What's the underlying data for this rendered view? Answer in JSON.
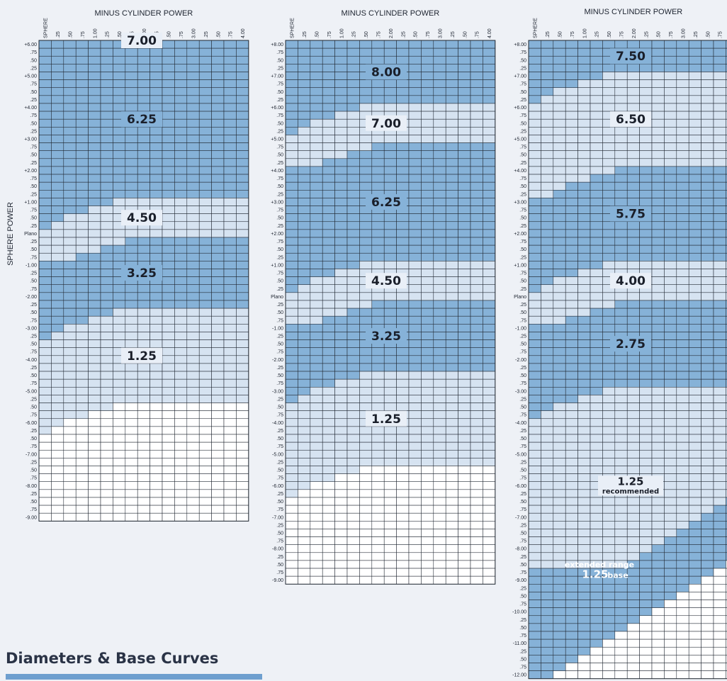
{
  "colors": {
    "page_bg": "#eef1f6",
    "dark_zone": "#86b2d8",
    "light_zone": "#d6e3f1",
    "white_zone": "#ffffff",
    "grid": "#1f2630",
    "label_box": "#e9eff7"
  },
  "caption": "Diameters & Base Curves",
  "chart_data": [
    {
      "type": "heatmap",
      "title": "MINUS CYLINDER POWER",
      "ylabel": "SPHERE POWER",
      "columns": [
        "SPHERE",
        ".25",
        ".50",
        ".75",
        "1.00",
        ".25",
        ".50",
        ".75",
        "2.00",
        ".25",
        ".50",
        ".75",
        "3.00",
        ".25",
        ".50",
        ".75",
        "4.00"
      ],
      "rows": [
        "+6.00",
        ".75",
        ".50",
        ".25",
        "+5.00",
        ".75",
        ".50",
        ".25",
        "+4.00",
        ".75",
        ".50",
        ".25",
        "+3.00",
        ".75",
        ".50",
        ".25",
        "+2.00",
        ".75",
        ".50",
        ".25",
        "+1.00",
        ".75",
        ".50",
        ".25",
        "Plano",
        ".25",
        ".50",
        ".75",
        "-1.00",
        ".25",
        ".50",
        ".75",
        "-2.00",
        ".25",
        ".50",
        ".75",
        "-3.00",
        ".25",
        ".50",
        ".75",
        "-4.00",
        ".25",
        ".50",
        ".75",
        "-5.00",
        ".25",
        ".50",
        ".75",
        "-6.00",
        ".25",
        ".50",
        ".75",
        "-7.00",
        ".25",
        ".50",
        ".75",
        "-8.00",
        ".25",
        ".50",
        ".75",
        "-9.00"
      ],
      "zones": [
        {
          "label": "7.00",
          "style": "light",
          "bounds": [
            -1,
            -1,
            -1,
            -1,
            -1,
            -1,
            -1,
            -1,
            -1,
            -1,
            -1,
            -1,
            -1,
            -1,
            -1,
            -1,
            -1
          ]
        },
        {
          "label": "6.25",
          "style": "dark",
          "bounds": [
            23,
            22,
            21,
            21,
            20,
            20,
            19,
            19,
            19,
            19,
            19,
            19,
            19,
            19,
            19,
            19,
            19
          ]
        },
        {
          "label": "4.50",
          "style": "light",
          "bounds": [
            27,
            27,
            27,
            26,
            26,
            25,
            25,
            24,
            24,
            24,
            24,
            24,
            24,
            24,
            24,
            24,
            24
          ]
        },
        {
          "label": "3.25",
          "style": "dark",
          "bounds": [
            37,
            36,
            35,
            35,
            34,
            34,
            33,
            33,
            33,
            33,
            33,
            33,
            33,
            33,
            33,
            33,
            33
          ]
        },
        {
          "label": "1.25",
          "style": "light",
          "bounds": [
            49,
            48,
            47,
            47,
            46,
            46,
            45,
            45,
            45,
            45,
            45,
            45,
            45,
            45,
            45,
            45,
            45
          ]
        }
      ],
      "extended": [
        61,
        61,
        60,
        59,
        58,
        57,
        56,
        56,
        56,
        56,
        56,
        56,
        56,
        56,
        56,
        56,
        56
      ],
      "zone_labels": [
        "7.00",
        "6.25",
        "4.50",
        "3.25",
        "1.25"
      ]
    },
    {
      "type": "heatmap",
      "title": "MINUS CYLINDER POWER",
      "columns": [
        "SPHERE",
        ".25",
        ".50",
        ".75",
        "1.00",
        ".25",
        ".50",
        ".75",
        "2.00",
        ".25",
        ".50",
        ".75",
        "3.00",
        ".25",
        ".50",
        ".75",
        "4.00"
      ],
      "rows": [
        "+8.00",
        ".75",
        ".50",
        ".25",
        "+7.00",
        ".75",
        ".50",
        ".25",
        "+6.00",
        ".75",
        ".50",
        ".25",
        "+5.00",
        ".75",
        ".50",
        ".25",
        "+4.00",
        ".75",
        ".50",
        ".25",
        "+3.00",
        ".75",
        ".50",
        ".25",
        "+2.00",
        ".75",
        ".50",
        ".25",
        "+1.00",
        ".75",
        ".50",
        ".25",
        "Plano",
        ".25",
        ".50",
        ".75",
        "-1.00",
        ".25",
        ".50",
        ".75",
        "-2.00",
        ".25",
        ".50",
        ".75",
        "-3.00",
        ".25",
        ".50",
        ".75",
        "-4.00",
        ".25",
        ".50",
        ".75",
        "-5.00",
        ".25",
        ".50",
        ".75",
        "-6.00",
        ".25",
        ".50",
        ".75",
        "-7.00",
        ".25",
        ".50",
        ".75",
        "-8.00",
        ".25",
        ".50",
        ".75",
        "-9.00"
      ],
      "zones": [
        {
          "label": "8.00",
          "style": "dark",
          "bounds": [
            11,
            10,
            9,
            9,
            8,
            8,
            7,
            7,
            7,
            7,
            7,
            7,
            7,
            7,
            7,
            7,
            7
          ]
        },
        {
          "label": "7.00",
          "style": "light",
          "bounds": [
            15,
            15,
            15,
            14,
            14,
            13,
            13,
            12,
            12,
            12,
            12,
            12,
            12,
            12,
            12,
            12,
            12
          ]
        },
        {
          "label": "6.25",
          "style": "dark",
          "bounds": [
            31,
            30,
            29,
            29,
            28,
            28,
            27,
            27,
            27,
            27,
            27,
            27,
            27,
            27,
            27,
            27,
            27
          ]
        },
        {
          "label": "4.50",
          "style": "light",
          "bounds": [
            35,
            35,
            35,
            34,
            34,
            33,
            33,
            32,
            32,
            32,
            32,
            32,
            32,
            32,
            32,
            32,
            32
          ]
        },
        {
          "label": "3.25",
          "style": "dark",
          "bounds": [
            45,
            44,
            43,
            43,
            42,
            42,
            41,
            41,
            41,
            41,
            41,
            41,
            41,
            41,
            41,
            41,
            41
          ]
        },
        {
          "label": "1.25",
          "style": "light",
          "bounds": [
            57,
            56,
            55,
            55,
            54,
            54,
            53,
            53,
            53,
            53,
            53,
            53,
            53,
            53,
            53,
            53,
            53
          ]
        }
      ],
      "extended": [
        69,
        69,
        68,
        67,
        66,
        65,
        64,
        64,
        64,
        64,
        64,
        64,
        64,
        64,
        64,
        64,
        64
      ],
      "zone_labels": [
        "8.00",
        "7.00",
        "6.25",
        "4.50",
        "3.25",
        "1.25"
      ]
    },
    {
      "type": "heatmap",
      "title": "MINUS CYLINDER POWER",
      "columns": [
        "SPHERE",
        ".25",
        ".50",
        ".75",
        "1.00",
        ".25",
        ".50",
        ".75",
        "2.00",
        ".25",
        ".50",
        ".75",
        "3.00",
        ".25",
        ".50",
        ".75",
        "4.00"
      ],
      "rows": [
        "+8.00",
        ".75",
        ".50",
        ".25",
        "+7.00",
        ".75",
        ".50",
        ".25",
        "+6.00",
        ".75",
        ".50",
        ".25",
        "+5.00",
        ".75",
        ".50",
        ".25",
        "+4.00",
        ".75",
        ".50",
        ".25",
        "+3.00",
        ".75",
        ".50",
        ".25",
        "+2.00",
        ".75",
        ".50",
        ".25",
        "+1.00",
        ".75",
        ".50",
        ".25",
        "Plano",
        ".25",
        ".50",
        ".75",
        "-1.00",
        ".25",
        ".50",
        ".75",
        "-2.00",
        ".25",
        ".50",
        ".75",
        "-3.00",
        ".25",
        ".50",
        ".75",
        "-4.00",
        ".25",
        ".50",
        ".75",
        "-5.00",
        ".25",
        ".50",
        ".75",
        "-6.00",
        ".25",
        ".50",
        ".75",
        "-7.00",
        ".25",
        ".50",
        ".75",
        "-8.00",
        ".25",
        ".50",
        ".75",
        "-9.00",
        ".25",
        ".50",
        ".75",
        "-10.00",
        ".25",
        ".50",
        ".75",
        "-11.00",
        ".25",
        ".50",
        ".75",
        "-12.00"
      ],
      "zones": [
        {
          "label": "7.50",
          "style": "dark",
          "bounds": [
            7,
            6,
            5,
            5,
            4,
            4,
            3,
            3,
            3,
            3,
            3,
            3,
            3,
            3,
            3,
            3,
            3
          ]
        },
        {
          "label": "6.50",
          "style": "light",
          "bounds": [
            19,
            19,
            18,
            17,
            17,
            16,
            16,
            15,
            15,
            15,
            15,
            15,
            15,
            15,
            15,
            15,
            15
          ]
        },
        {
          "label": "5.75",
          "style": "dark",
          "bounds": [
            31,
            30,
            29,
            29,
            28,
            28,
            27,
            27,
            27,
            27,
            27,
            27,
            27,
            27,
            27,
            27,
            27
          ]
        },
        {
          "label": "4.00",
          "style": "light",
          "bounds": [
            35,
            35,
            35,
            34,
            34,
            33,
            33,
            32,
            32,
            32,
            32,
            32,
            32,
            32,
            32,
            32,
            32
          ]
        },
        {
          "label": "2.75",
          "style": "dark",
          "bounds": [
            47,
            46,
            45,
            45,
            44,
            44,
            43,
            43,
            43,
            43,
            43,
            43,
            43,
            43,
            43,
            43,
            43
          ]
        },
        {
          "label": "1.25",
          "sublabel": "recommended",
          "style": "light",
          "bounds": [
            66,
            66,
            66,
            66,
            66,
            66,
            66,
            66,
            65,
            64,
            63,
            62,
            61,
            60,
            59,
            58,
            57
          ]
        },
        {
          "label": "1.25",
          "sublabel": "base",
          "style": "dark",
          "bounds": [
            81,
            80,
            79,
            78,
            77,
            76,
            75,
            74,
            73,
            72,
            71,
            70,
            69,
            68,
            67,
            66,
            65
          ]
        }
      ],
      "extended": [
        81,
        80,
        79,
        78,
        77,
        76,
        75,
        74,
        73,
        72,
        71,
        70,
        69,
        68,
        67,
        66,
        65
      ],
      "extended_label": "extended range",
      "zone_labels": [
        "7.50",
        "6.50",
        "5.75",
        "4.00",
        "2.75",
        "1.25 recommended",
        "1.25 base"
      ]
    }
  ]
}
